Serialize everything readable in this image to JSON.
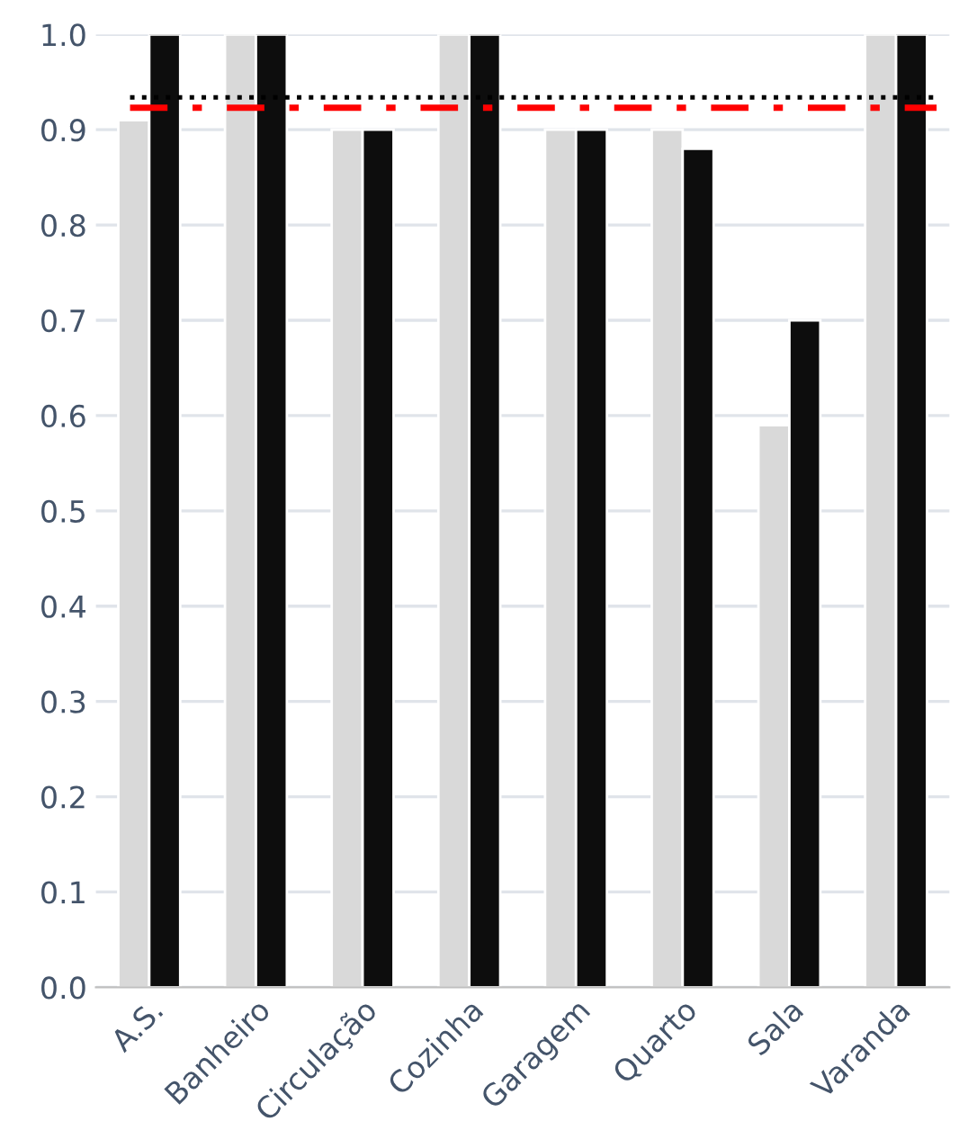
{
  "chart_data": {
    "type": "bar",
    "categories": [
      "A.S.",
      "Banheiro",
      "Circulação",
      "Cozinha",
      "Garagem",
      "Quarto",
      "Sala",
      "Varanda"
    ],
    "series": [
      {
        "color": "#d9d9d9",
        "values": [
          0.91,
          1.0,
          0.9,
          1.0,
          0.9,
          0.9,
          0.59,
          1.0
        ]
      },
      {
        "color": "#0d0d0d",
        "values": [
          1.0,
          1.0,
          0.9,
          1.0,
          0.9,
          0.88,
          0.7,
          1.0
        ]
      }
    ],
    "ylim": [
      0,
      1.0
    ],
    "yticks": [
      {
        "value": 0,
        "label": "0.0"
      },
      {
        "value": 0.1,
        "label": "0.1"
      },
      {
        "value": 0.2,
        "label": "0.2"
      },
      {
        "value": 0.3,
        "label": "0.3"
      },
      {
        "value": 0.4,
        "label": "0.4"
      },
      {
        "value": 0.5,
        "label": "0.5"
      },
      {
        "value": 0.6,
        "label": "0.6"
      },
      {
        "value": 0.7,
        "label": "0.7"
      },
      {
        "value": 0.8,
        "label": "0.8"
      },
      {
        "value": 0.9,
        "label": "0.9"
      },
      {
        "value": 1.0,
        "label": "1.0"
      }
    ],
    "grid": "y",
    "ref_lines": [
      {
        "axis": "y",
        "value": 0.934,
        "color": "#000000",
        "line_style": "dotted"
      },
      {
        "axis": "y",
        "value": 0.923,
        "color": "#ff0000",
        "line_style": "dashdot"
      }
    ]
  }
}
